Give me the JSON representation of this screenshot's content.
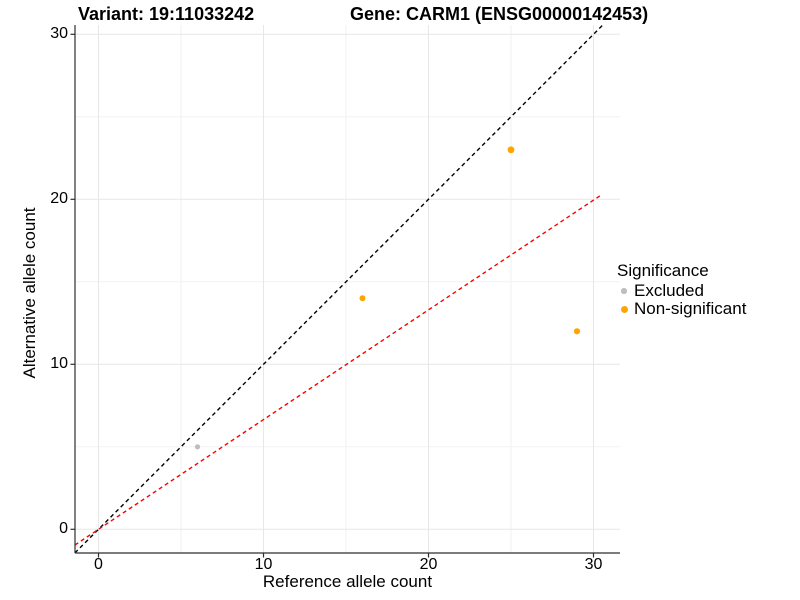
{
  "chart_data": {
    "type": "scatter",
    "titles": {
      "variant": "Variant: 19:11033242",
      "gene": "Gene: CARM1 (ENSG00000142453)"
    },
    "xlabel": "Reference allele count",
    "ylabel": "Alternative allele count",
    "xlim": [
      -1.45,
      31.75
    ],
    "ylim": [
      -1.45,
      30.6
    ],
    "x_major_ticks": [
      0,
      10,
      20,
      30
    ],
    "x_minor_gridlines": [
      5,
      15,
      25
    ],
    "y_major_ticks": [
      0,
      10,
      20,
      30
    ],
    "y_minor_gridlines": [
      5,
      15,
      25
    ],
    "grid": true,
    "legend": {
      "position": "right-center",
      "title": "Significance",
      "items": [
        {
          "label": "Excluded",
          "color": "#bebebe",
          "marker_diameter": 5.5
        },
        {
          "label": "Non-significant",
          "color": "#ffa500",
          "marker_diameter": 7
        }
      ]
    },
    "series": [
      {
        "name": "Excluded",
        "color": "#bebebe",
        "points": [
          {
            "x": 6,
            "y": 5,
            "r": 2.6
          }
        ]
      },
      {
        "name": "Non-significant",
        "color": "#ffa500",
        "points": [
          {
            "x": 16,
            "y": 14,
            "r": 3.0
          },
          {
            "x": 25,
            "y": 23,
            "r": 3.4
          },
          {
            "x": 29,
            "y": 12,
            "r": 3.1
          }
        ]
      }
    ],
    "reference_lines": [
      {
        "name": "identity-line",
        "slope": 1,
        "intercept": 0,
        "color": "#000000",
        "linestyle": "dashed",
        "x_range": [
          -1.43,
          30.56
        ]
      },
      {
        "name": "expected-ratio-line",
        "slope": 0.665,
        "intercept": 0,
        "color": "#ff0000",
        "linestyle": "dashed",
        "x_range": [
          -1.43,
          30.4
        ]
      }
    ],
    "colors": {
      "axis": "#2e2e2e",
      "grid_major": "#e7e7e7",
      "grid_minor": "#f2f2f2",
      "background": "#ffffff"
    }
  }
}
